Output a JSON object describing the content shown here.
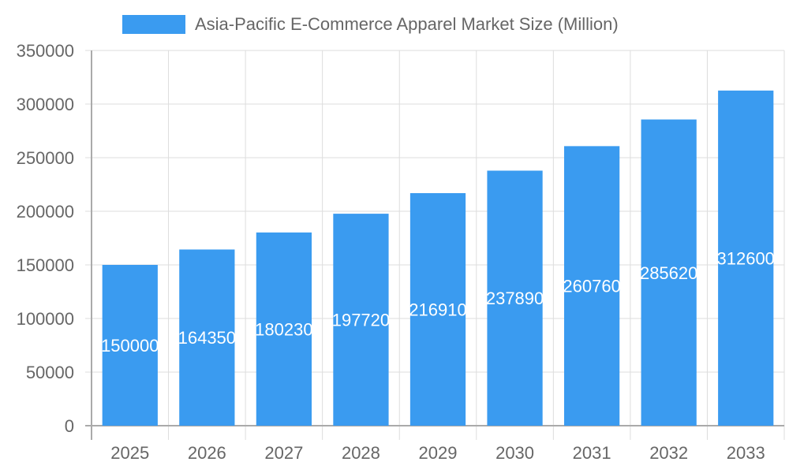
{
  "chart_data": {
    "type": "bar",
    "title": "",
    "legend": [
      "Asia-Pacific E-Commerce Apparel Market Size (Million)"
    ],
    "legend_position": "top",
    "categories": [
      "2025",
      "2026",
      "2027",
      "2028",
      "2029",
      "2030",
      "2031",
      "2032",
      "2033"
    ],
    "series": [
      {
        "name": "Asia-Pacific E-Commerce Apparel Market Size (Million)",
        "values": [
          150000,
          164350,
          180230,
          197720,
          216910,
          237890,
          260760,
          285620,
          312600
        ],
        "color": "#3a9bf0"
      }
    ],
    "xlabel": "",
    "ylabel": "",
    "ylim": [
      0,
      350000
    ],
    "yticks": [
      0,
      50000,
      100000,
      150000,
      200000,
      250000,
      300000,
      350000
    ],
    "grid": true,
    "data_labels": true
  }
}
